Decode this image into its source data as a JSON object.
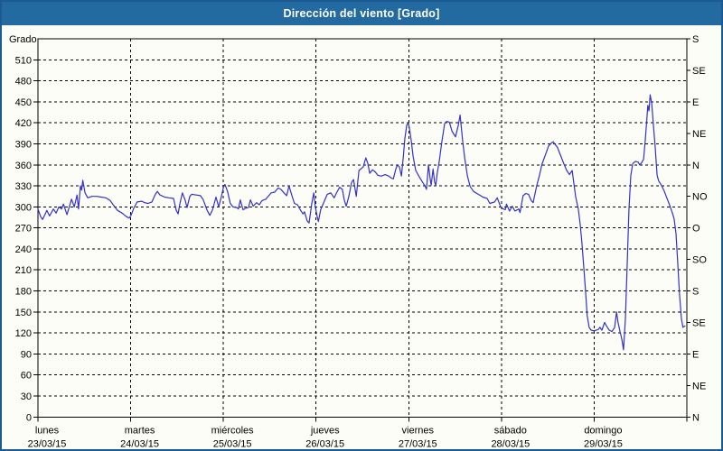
{
  "window": {
    "title": "Dirección del viento [Grado]"
  },
  "colors": {
    "titlebar_bg": "#226a9f",
    "window_border": "#1c5a94",
    "page_bg": "#fdfdf7",
    "line": "#3232c8",
    "grid": "#000000",
    "text": "#000000"
  },
  "chart_data": {
    "type": "line",
    "title": "Dirección del viento [Grado]",
    "grid": "dashed",
    "y_left": {
      "label": "Grado",
      "min": 0,
      "max": 540,
      "tick_step": 30,
      "ticks": [
        510,
        480,
        450,
        420,
        390,
        360,
        330,
        300,
        270,
        240,
        210,
        180,
        150,
        120,
        90,
        60,
        30,
        0
      ]
    },
    "y_right": {
      "ticks": [
        {
          "value": 540,
          "label": "S"
        },
        {
          "value": 495,
          "label": "SE"
        },
        {
          "value": 450,
          "label": "E"
        },
        {
          "value": 405,
          "label": "NE"
        },
        {
          "value": 360,
          "label": "N"
        },
        {
          "value": 315,
          "label": "NO"
        },
        {
          "value": 270,
          "label": "O"
        },
        {
          "value": 225,
          "label": "SO"
        },
        {
          "value": 180,
          "label": "S"
        },
        {
          "value": 135,
          "label": "SE"
        },
        {
          "value": 90,
          "label": "E"
        },
        {
          "value": 45,
          "label": "NE"
        },
        {
          "value": 0,
          "label": "N"
        }
      ]
    },
    "x": {
      "min_hours": 0,
      "max_hours": 168,
      "hours_per_day": 24,
      "day_ticks": [
        {
          "name": "lunes",
          "date": "23/03/15"
        },
        {
          "name": "martes",
          "date": "24/03/15"
        },
        {
          "name": "miércoles",
          "date": "25/03/15"
        },
        {
          "name": "jueves",
          "date": "26/03/15"
        },
        {
          "name": "viernes",
          "date": "27/03/15"
        },
        {
          "name": "sábado",
          "date": "28/03/15"
        },
        {
          "name": "domingo",
          "date": "29/03/15"
        }
      ]
    },
    "series": [
      {
        "name": "Dirección del viento",
        "unit": "Grado",
        "points": [
          [
            0,
            297
          ],
          [
            0.7,
            286
          ],
          [
            1.2,
            282
          ],
          [
            1.9,
            290
          ],
          [
            2.3,
            295
          ],
          [
            3,
            287
          ],
          [
            4,
            297
          ],
          [
            4.7,
            291
          ],
          [
            5.4,
            300
          ],
          [
            6.1,
            297
          ],
          [
            6.6,
            304
          ],
          [
            7.5,
            289
          ],
          [
            8.7,
            311
          ],
          [
            9.4,
            300
          ],
          [
            10.1,
            317
          ],
          [
            10.5,
            297
          ],
          [
            11,
            330
          ],
          [
            11.3,
            324
          ],
          [
            11.6,
            338
          ],
          [
            12.2,
            320
          ],
          [
            12.9,
            313
          ],
          [
            14,
            315
          ],
          [
            15.2,
            315
          ],
          [
            16.4,
            314
          ],
          [
            17.6,
            313
          ],
          [
            18.7,
            309
          ],
          [
            19.9,
            300
          ],
          [
            20.6,
            295
          ],
          [
            21.8,
            291
          ],
          [
            22.9,
            286
          ],
          [
            23.6,
            284
          ],
          [
            24.1,
            288
          ],
          [
            24.8,
            298
          ],
          [
            25.7,
            307
          ],
          [
            26.9,
            308
          ],
          [
            27.6,
            306
          ],
          [
            28.5,
            305
          ],
          [
            29.5,
            307
          ],
          [
            30.4,
            318
          ],
          [
            30.9,
            322
          ],
          [
            31.6,
            317
          ],
          [
            32.8,
            314
          ],
          [
            33.9,
            313
          ],
          [
            35.1,
            312
          ],
          [
            35.8,
            295
          ],
          [
            36.3,
            290
          ],
          [
            36.7,
            303
          ],
          [
            37.4,
            320
          ],
          [
            38.1,
            310
          ],
          [
            38.6,
            299
          ],
          [
            39.3,
            315
          ],
          [
            39.8,
            318
          ],
          [
            41,
            317
          ],
          [
            42.1,
            316
          ],
          [
            42.8,
            310
          ],
          [
            43.8,
            295
          ],
          [
            44.5,
            288
          ],
          [
            45.2,
            296
          ],
          [
            46.1,
            314
          ],
          [
            46.8,
            300
          ],
          [
            47.5,
            315
          ],
          [
            48.1,
            330
          ],
          [
            48.4,
            332
          ],
          [
            49.1,
            322
          ],
          [
            49.8,
            305
          ],
          [
            50.5,
            300
          ],
          [
            51.5,
            299
          ],
          [
            51.9,
            297
          ],
          [
            52.4,
            310
          ],
          [
            53.1,
            296
          ],
          [
            53.8,
            298
          ],
          [
            54.5,
            299
          ],
          [
            55,
            310
          ],
          [
            55.7,
            301
          ],
          [
            56.6,
            306
          ],
          [
            57.3,
            303
          ],
          [
            58,
            309
          ],
          [
            59,
            311
          ],
          [
            60.4,
            320
          ],
          [
            61.3,
            321
          ],
          [
            62.2,
            327
          ],
          [
            62.9,
            325
          ],
          [
            63.7,
            320
          ],
          [
            64.4,
            316
          ],
          [
            65,
            330
          ],
          [
            65.7,
            317
          ],
          [
            66.4,
            305
          ],
          [
            67.2,
            303
          ],
          [
            67.9,
            296
          ],
          [
            68.6,
            290
          ],
          [
            69,
            293
          ],
          [
            69.7,
            280
          ],
          [
            70.2,
            277
          ],
          [
            70.9,
            305
          ],
          [
            71.4,
            320
          ],
          [
            71.8,
            300
          ],
          [
            72.3,
            286
          ],
          [
            72.6,
            279
          ],
          [
            73.2,
            296
          ],
          [
            73.9,
            305
          ],
          [
            74.9,
            318
          ],
          [
            75.8,
            320
          ],
          [
            76.7,
            313
          ],
          [
            77.4,
            321
          ],
          [
            78.1,
            328
          ],
          [
            78.8,
            325
          ],
          [
            79.3,
            310
          ],
          [
            79.8,
            301
          ],
          [
            80.5,
            315
          ],
          [
            81.2,
            335
          ],
          [
            81.7,
            339
          ],
          [
            82.4,
            315
          ],
          [
            83.1,
            352
          ],
          [
            83.8,
            355
          ],
          [
            84.2,
            357
          ],
          [
            84.9,
            370
          ],
          [
            85.4,
            362
          ],
          [
            85.9,
            348
          ],
          [
            86.6,
            353
          ],
          [
            87.3,
            350
          ],
          [
            88,
            345
          ],
          [
            88.9,
            344
          ],
          [
            89.9,
            346
          ],
          [
            90.8,
            344
          ],
          [
            91.5,
            341
          ],
          [
            92,
            340
          ],
          [
            92.7,
            355
          ],
          [
            93.1,
            360
          ],
          [
            93.6,
            357
          ],
          [
            94.1,
            344
          ],
          [
            94.6,
            372
          ],
          [
            95,
            398
          ],
          [
            95.5,
            417
          ],
          [
            95.9,
            419
          ],
          [
            96.2,
            412
          ],
          [
            96.7,
            392
          ],
          [
            97.1,
            373
          ],
          [
            97.8,
            352
          ],
          [
            98.8,
            342
          ],
          [
            99.5,
            336
          ],
          [
            100.2,
            330
          ],
          [
            100.6,
            325
          ],
          [
            101.1,
            360
          ],
          [
            101.6,
            338
          ],
          [
            101.8,
            331
          ],
          [
            102.3,
            354
          ],
          [
            102.7,
            335
          ],
          [
            103,
            331
          ],
          [
            103.4,
            349
          ],
          [
            103.9,
            365
          ],
          [
            104.6,
            394
          ],
          [
            105.3,
            419
          ],
          [
            105.8,
            422
          ],
          [
            106.5,
            421
          ],
          [
            107.2,
            408
          ],
          [
            108.1,
            400
          ],
          [
            108.8,
            416
          ],
          [
            109.3,
            431
          ],
          [
            110,
            392
          ],
          [
            110.5,
            369
          ],
          [
            111.2,
            344
          ],
          [
            111.9,
            329
          ],
          [
            112.8,
            322
          ],
          [
            114,
            318
          ],
          [
            115.2,
            314
          ],
          [
            116.3,
            312
          ],
          [
            117,
            305
          ],
          [
            118.2,
            307
          ],
          [
            118.9,
            313
          ],
          [
            119.8,
            300
          ],
          [
            120.5,
            297
          ],
          [
            121,
            296
          ],
          [
            121.3,
            304
          ],
          [
            122.1,
            294
          ],
          [
            122.8,
            301
          ],
          [
            123.5,
            294
          ],
          [
            124.5,
            297
          ],
          [
            124.8,
            292
          ],
          [
            125.6,
            316
          ],
          [
            126.3,
            319
          ],
          [
            127,
            318
          ],
          [
            127.7,
            309
          ],
          [
            128.2,
            306
          ],
          [
            129.1,
            329
          ],
          [
            129.8,
            344
          ],
          [
            130.5,
            361
          ],
          [
            131.5,
            376
          ],
          [
            132.2,
            387
          ],
          [
            132.9,
            391
          ],
          [
            133.4,
            393
          ],
          [
            133.8,
            390
          ],
          [
            134.5,
            385
          ],
          [
            135.2,
            375
          ],
          [
            136.2,
            361
          ],
          [
            136.9,
            352
          ],
          [
            137.6,
            346
          ],
          [
            138.3,
            352
          ],
          [
            139.2,
            315
          ],
          [
            139.9,
            297
          ],
          [
            140.4,
            275
          ],
          [
            140.8,
            250
          ],
          [
            141.3,
            215
          ],
          [
            141.8,
            178
          ],
          [
            142.2,
            145
          ],
          [
            142.7,
            128
          ],
          [
            143.2,
            124
          ],
          [
            143.9,
            123
          ],
          [
            144.6,
            124
          ],
          [
            145.1,
            125
          ],
          [
            145.5,
            128
          ],
          [
            146,
            124
          ],
          [
            146.7,
            135
          ],
          [
            147.2,
            130
          ],
          [
            147.9,
            124
          ],
          [
            148.6,
            122
          ],
          [
            149.3,
            128
          ],
          [
            149.8,
            150
          ],
          [
            150.2,
            135
          ],
          [
            150.7,
            122
          ],
          [
            151.2,
            110
          ],
          [
            151.6,
            96
          ],
          [
            152.1,
            140
          ],
          [
            152.5,
            210
          ],
          [
            153,
            295
          ],
          [
            153.5,
            345
          ],
          [
            154,
            362
          ],
          [
            154.7,
            365
          ],
          [
            155.4,
            364
          ],
          [
            155.8,
            360
          ],
          [
            156.3,
            363
          ],
          [
            156.8,
            368
          ],
          [
            157.2,
            392
          ],
          [
            157.7,
            430
          ],
          [
            157.9,
            445
          ],
          [
            158.2,
            437
          ],
          [
            158.5,
            460
          ],
          [
            158.9,
            448
          ],
          [
            159.3,
            420
          ],
          [
            159.8,
            385
          ],
          [
            160.3,
            345
          ],
          [
            160.7,
            337
          ],
          [
            161.4,
            331
          ],
          [
            162.1,
            323
          ],
          [
            162.8,
            313
          ],
          [
            163.5,
            303
          ],
          [
            164.2,
            292
          ],
          [
            164.7,
            283
          ],
          [
            165.2,
            262
          ],
          [
            165.6,
            225
          ],
          [
            166.1,
            175
          ],
          [
            166.6,
            140
          ],
          [
            167,
            128
          ],
          [
            167.5,
            130
          ]
        ]
      }
    ]
  }
}
